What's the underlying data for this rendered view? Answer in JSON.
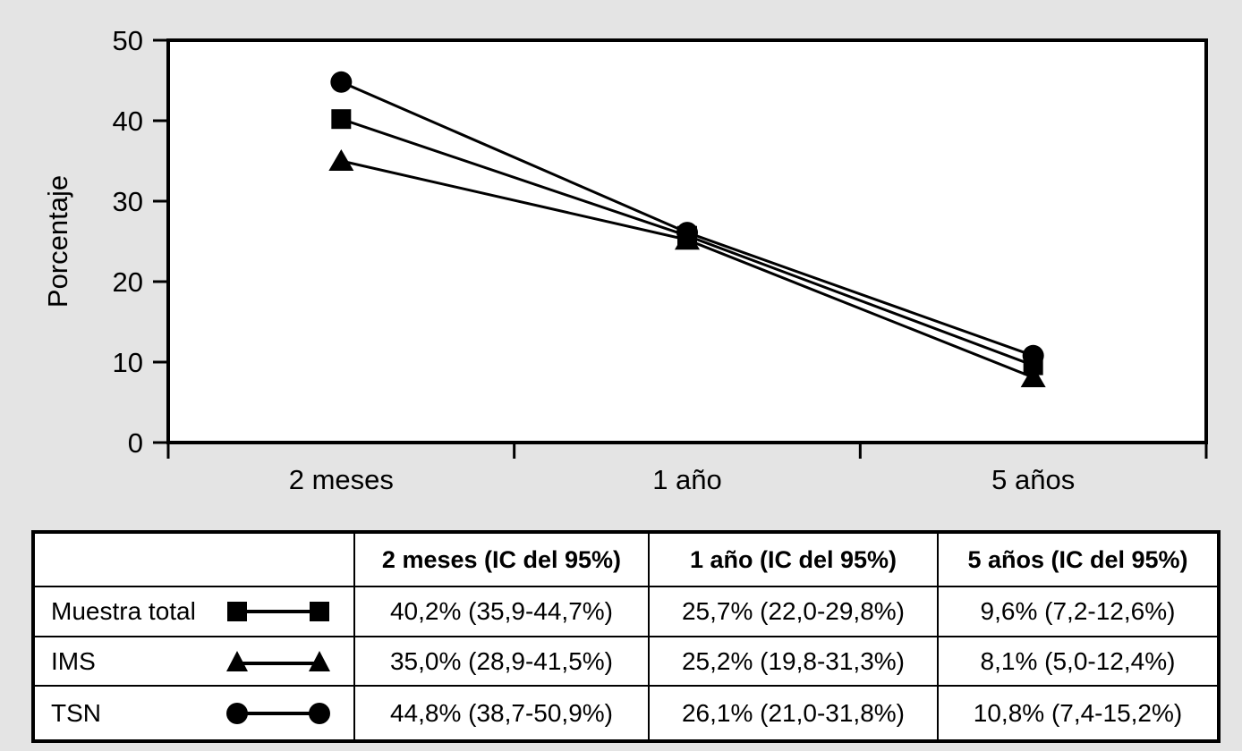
{
  "background_color": "#e4e4e4",
  "line_color": "#000000",
  "chart_data": {
    "type": "line",
    "title": "",
    "xlabel": "",
    "ylabel": "Porcentaje",
    "categories": [
      "2 meses",
      "1 año",
      "5 años"
    ],
    "series": [
      {
        "name": "Muestra total",
        "marker": "square",
        "values": [
          40.2,
          25.7,
          9.6
        ]
      },
      {
        "name": "IMS",
        "marker": "triangle",
        "values": [
          35.0,
          25.2,
          8.1
        ]
      },
      {
        "name": "TSN",
        "marker": "circle",
        "values": [
          44.8,
          26.1,
          10.8
        ]
      }
    ],
    "ylim": [
      0,
      50
    ],
    "yticks": [
      0,
      10,
      20,
      30,
      40,
      50
    ],
    "grid": false,
    "legend_position": "table-below-chart"
  },
  "table": {
    "headers": [
      "",
      "2 meses (IC del 95%)",
      "1 año (IC del 95%)",
      "5 años (IC del 95%)"
    ],
    "rows": [
      {
        "label": "Muestra total",
        "marker": "square",
        "cells": [
          "40,2% (35,9-44,7%)",
          "25,7% (22,0-29,8%)",
          "9,6% (7,2-12,6%)"
        ]
      },
      {
        "label": "IMS",
        "marker": "triangle",
        "cells": [
          "35,0% (28,9-41,5%)",
          "25,2% (19,8-31,3%)",
          "8,1% (5,0-12,4%)"
        ]
      },
      {
        "label": "TSN",
        "marker": "circle",
        "cells": [
          "44,8% (38,7-50,9%)",
          "26,1% (21,0-31,8%)",
          "10,8% (7,4-15,2%)"
        ]
      }
    ]
  }
}
